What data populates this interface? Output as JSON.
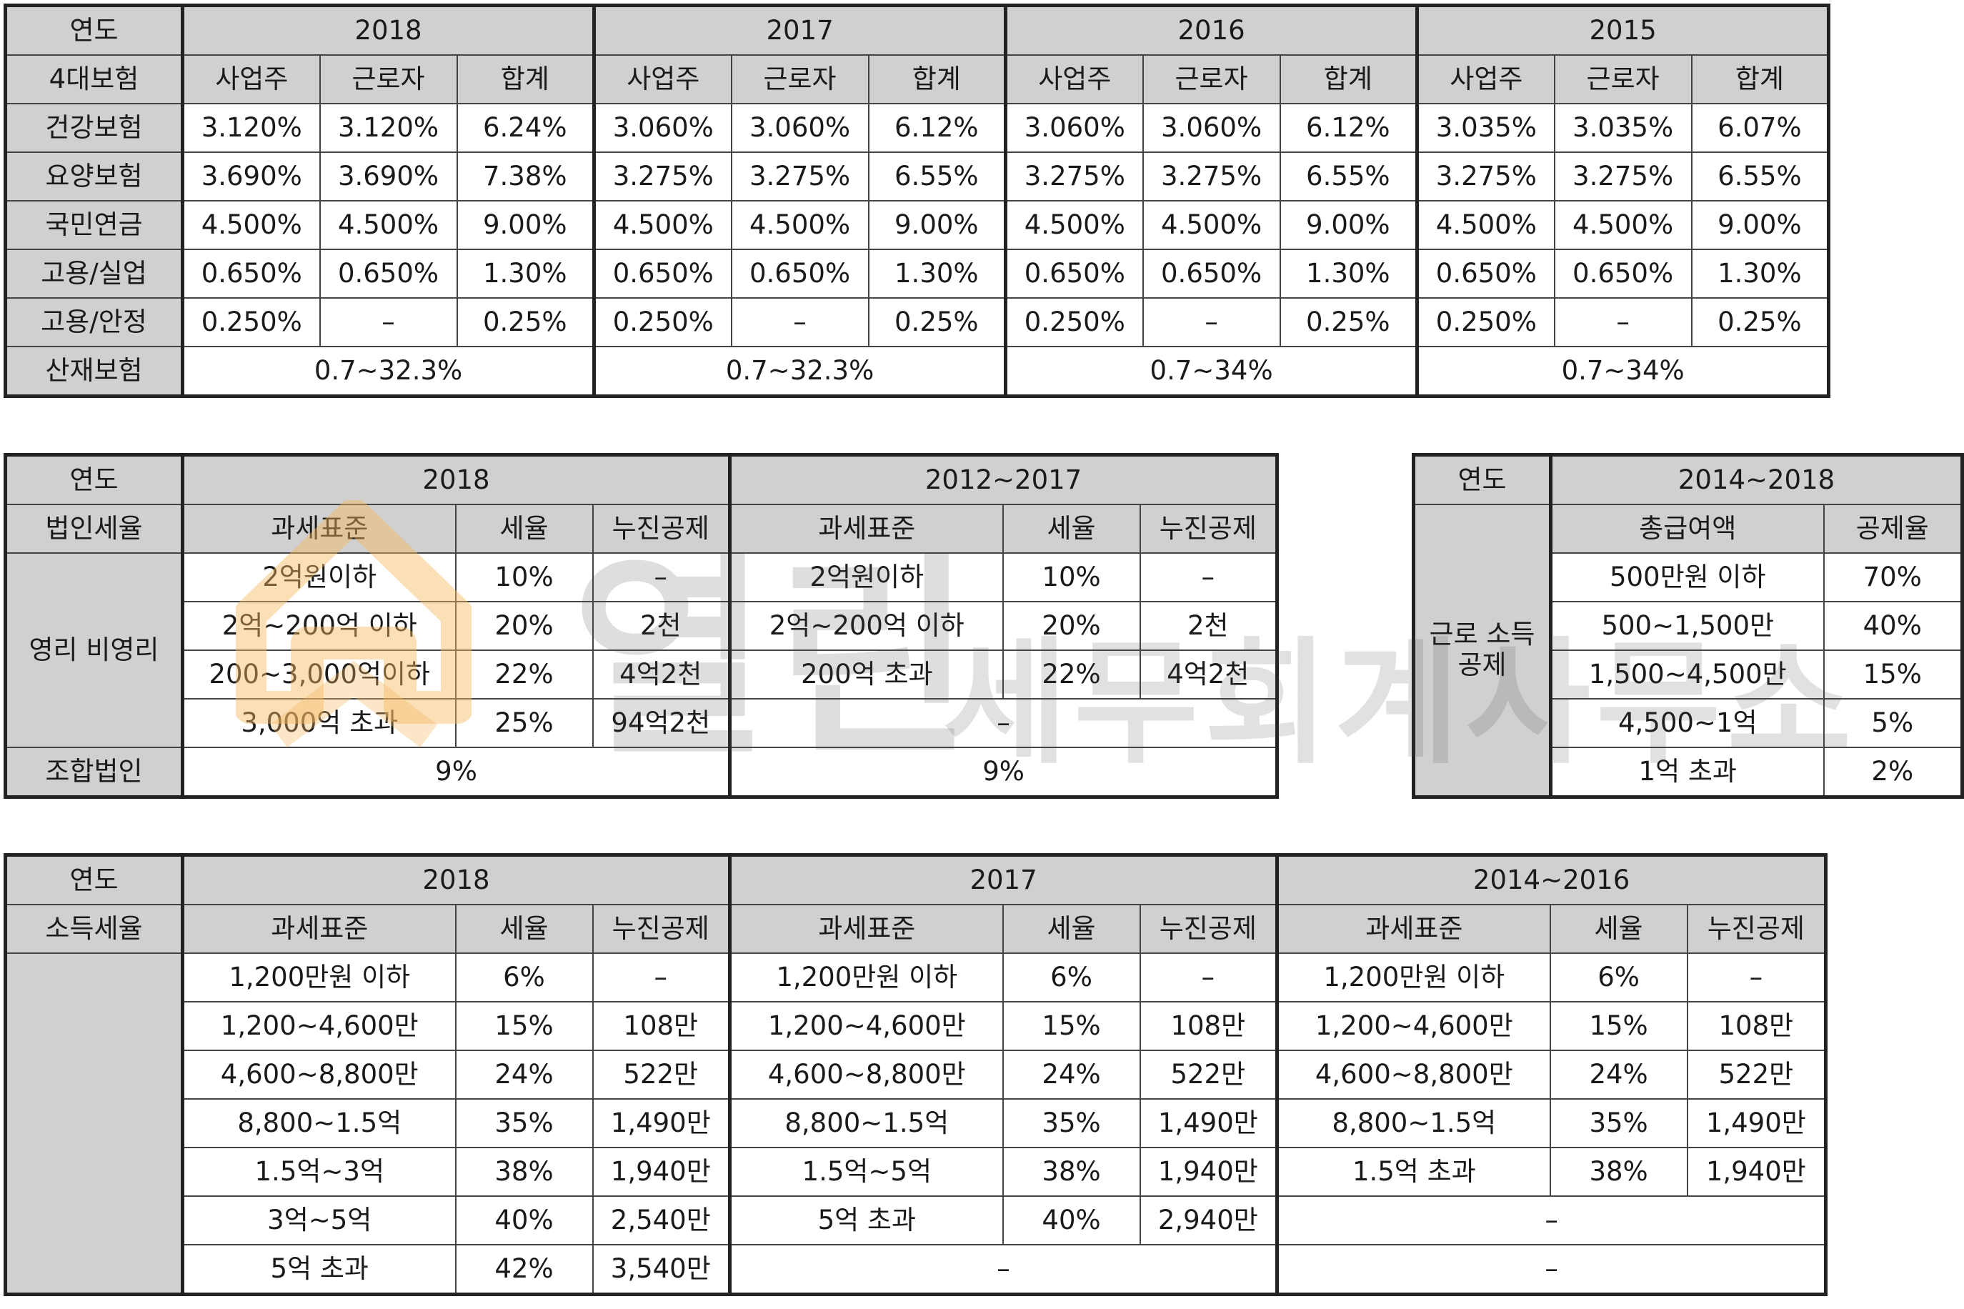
{
  "insurance": {
    "header_label": "연도",
    "sub_label": "4대보험",
    "years": [
      "2018",
      "2017",
      "2016",
      "2015"
    ],
    "cols": [
      "사업주",
      "근로자",
      "합계"
    ],
    "rows": [
      {
        "name": "건강보험",
        "cells": [
          [
            "3.120%",
            "3.120%",
            "6.24%"
          ],
          [
            "3.060%",
            "3.060%",
            "6.12%"
          ],
          [
            "3.060%",
            "3.060%",
            "6.12%"
          ],
          [
            "3.035%",
            "3.035%",
            "6.07%"
          ]
        ]
      },
      {
        "name": "요양보험",
        "cells": [
          [
            "3.690%",
            "3.690%",
            "7.38%"
          ],
          [
            "3.275%",
            "3.275%",
            "6.55%"
          ],
          [
            "3.275%",
            "3.275%",
            "6.55%"
          ],
          [
            "3.275%",
            "3.275%",
            "6.55%"
          ]
        ]
      },
      {
        "name": "국민연금",
        "cells": [
          [
            "4.500%",
            "4.500%",
            "9.00%"
          ],
          [
            "4.500%",
            "4.500%",
            "9.00%"
          ],
          [
            "4.500%",
            "4.500%",
            "9.00%"
          ],
          [
            "4.500%",
            "4.500%",
            "9.00%"
          ]
        ]
      },
      {
        "name": "고용/실업",
        "cells": [
          [
            "0.650%",
            "0.650%",
            "1.30%"
          ],
          [
            "0.650%",
            "0.650%",
            "1.30%"
          ],
          [
            "0.650%",
            "0.650%",
            "1.30%"
          ],
          [
            "0.650%",
            "0.650%",
            "1.30%"
          ]
        ]
      },
      {
        "name": "고용/안정",
        "cells": [
          [
            "0.250%",
            "–",
            "0.25%"
          ],
          [
            "0.250%",
            "–",
            "0.25%"
          ],
          [
            "0.250%",
            "–",
            "0.25%"
          ],
          [
            "0.250%",
            "–",
            "0.25%"
          ]
        ]
      }
    ],
    "last_row": {
      "name": "산재보험",
      "values": [
        "0.7~32.3%",
        "0.7~32.3%",
        "0.7~34%",
        "0.7~34%"
      ]
    }
  },
  "corporate": {
    "header_label": "연도",
    "sub_label": "법인세율",
    "years": [
      "2018",
      "2012~2017"
    ],
    "cols": [
      "과세표준",
      "세율",
      "누진공제"
    ],
    "group_label": "영리\n비영리",
    "rows_2018": [
      [
        "2억원이하",
        "10%",
        "–"
      ],
      [
        "2억~200억 이하",
        "20%",
        "2천"
      ],
      [
        "200~3,000억이하",
        "22%",
        "4억2천"
      ],
      [
        "3,000억 초과",
        "25%",
        "94억2천"
      ]
    ],
    "rows_2012": [
      [
        "2억원이하",
        "10%",
        "–"
      ],
      [
        "2억~200억 이하",
        "20%",
        "2천"
      ],
      [
        "200억 초과",
        "22%",
        "4억2천"
      ]
    ],
    "dash": "–",
    "union_label": "조합법인",
    "union_values": [
      "9%",
      "9%"
    ]
  },
  "earned": {
    "header_label": "연도",
    "year": "2014~2018",
    "group_label": "근로\n소득\n공제",
    "cols": [
      "총급여액",
      "공제율"
    ],
    "rows": [
      [
        "500만원 이하",
        "70%"
      ],
      [
        "500~1,500만",
        "40%"
      ],
      [
        "1,500~4,500만",
        "15%"
      ],
      [
        "4,500~1억",
        "5%"
      ],
      [
        "1억 초과",
        "2%"
      ]
    ]
  },
  "income": {
    "header_label": "연도",
    "sub_label": "소득세율",
    "years": [
      "2018",
      "2017",
      "2014~2016"
    ],
    "cols": [
      "과세표준",
      "세율",
      "누진공제"
    ],
    "rows_2018": [
      [
        "1,200만원 이하",
        "6%",
        "–"
      ],
      [
        "1,200~4,600만",
        "15%",
        "108만"
      ],
      [
        "4,600~8,800만",
        "24%",
        "522만"
      ],
      [
        "8,800~1.5억",
        "35%",
        "1,490만"
      ],
      [
        "1.5억~3억",
        "38%",
        "1,940만"
      ],
      [
        "3억~5억",
        "40%",
        "2,540만"
      ],
      [
        "5억 초과",
        "42%",
        "3,540만"
      ]
    ],
    "rows_2017": [
      [
        "1,200만원 이하",
        "6%",
        "–"
      ],
      [
        "1,200~4,600만",
        "15%",
        "108만"
      ],
      [
        "4,600~8,800만",
        "24%",
        "522만"
      ],
      [
        "8,800~1.5억",
        "35%",
        "1,490만"
      ],
      [
        "1.5억~5억",
        "38%",
        "1,940만"
      ],
      [
        "5억 초과",
        "40%",
        "2,940만"
      ]
    ],
    "rows_2014": [
      [
        "1,200만원 이하",
        "6%",
        "–"
      ],
      [
        "1,200~4,600만",
        "15%",
        "108만"
      ],
      [
        "4,600~8,800만",
        "24%",
        "522만"
      ],
      [
        "8,800~1.5억",
        "35%",
        "1,490만"
      ],
      [
        "1.5억 초과",
        "38%",
        "1,940만"
      ]
    ],
    "dash": "–"
  },
  "watermark": {
    "big": "열린",
    "small": "세무회계사무소",
    "logo_color": "#f4b860",
    "text_color": "#7a7a7a"
  }
}
